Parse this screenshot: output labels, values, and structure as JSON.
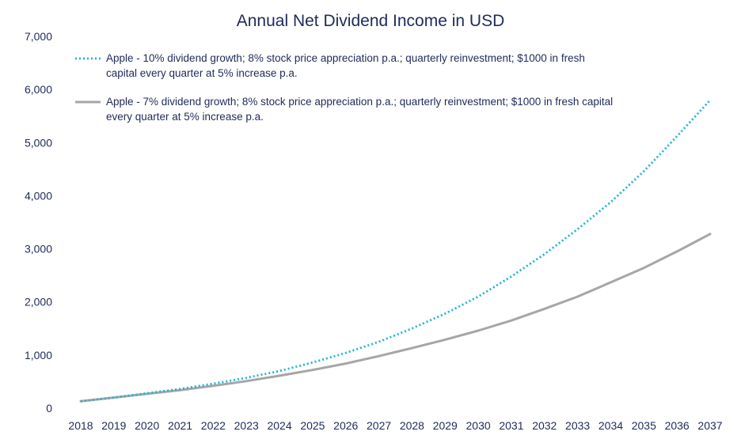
{
  "chart_data": {
    "type": "line",
    "title": "Annual Net Dividend Income in USD",
    "xlabel": "",
    "ylabel": "",
    "ylim": [
      0,
      7000
    ],
    "yticks": [
      "0",
      "1,000",
      "2,000",
      "3,000",
      "4,000",
      "5,000",
      "6,000",
      "7,000"
    ],
    "categories": [
      "2018",
      "2019",
      "2020",
      "2021",
      "2022",
      "2023",
      "2024",
      "2025",
      "2026",
      "2027",
      "2028",
      "2029",
      "2030",
      "2031",
      "2032",
      "2033",
      "2034",
      "2035",
      "2036",
      "2037"
    ],
    "grid": false,
    "legend_position": "top-left",
    "series": [
      {
        "name": "Apple - 10% dividend growth; 8% stock price appreciation p.a.; quarterly reinvestment; $1000 in fresh capital every quarter at 5% increase p.a.",
        "legend_lines": [
          "Apple - 10% dividend growth; 8% stock price appreciation p.a.; quarterly reinvestment; $1000 in fresh",
          "capital every quarter at 5% increase p.a."
        ],
        "color": "#1fb4d8",
        "style": "dotted",
        "values": [
          130,
          200,
          280,
          360,
          460,
          570,
          700,
          860,
          1040,
          1250,
          1500,
          1780,
          2100,
          2480,
          2900,
          3370,
          3880,
          4460,
          5120,
          5800
        ]
      },
      {
        "name": "Apple - 7% dividend growth; 8% stock price appreciation p.a.; quarterly reinvestment; $1000 in fresh capital every quarter at 5% increase p.a.",
        "legend_lines": [
          "Apple - 7% dividend growth; 8% stock price appreciation p.a.; quarterly reinvestment; $1000 in fresh capital",
          "every quarter at 5% increase p.a."
        ],
        "color": "#a6a6a6",
        "style": "solid",
        "values": [
          130,
          200,
          270,
          340,
          420,
          510,
          610,
          720,
          840,
          980,
          1130,
          1290,
          1460,
          1650,
          1870,
          2100,
          2370,
          2640,
          2950,
          3280
        ]
      }
    ]
  }
}
